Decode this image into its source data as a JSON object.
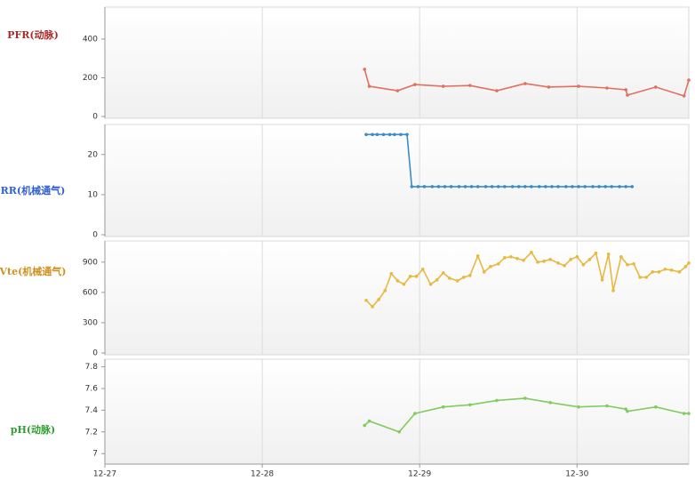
{
  "chart_data": [
    {
      "type": "line",
      "ylabel": "PFR(动脉)",
      "label_color": "#a82a2a",
      "ylim": [
        0,
        565
      ],
      "yticks": [
        0,
        200,
        400
      ],
      "xlim": [
        0,
        3.71
      ],
      "series": [
        {
          "color": "#e07060",
          "x": [
            1.65,
            1.68,
            1.86,
            1.97,
            2.15,
            2.32,
            2.49,
            2.67,
            2.82,
            3.01,
            3.19,
            3.31,
            3.32,
            3.5,
            3.68,
            3.71
          ],
          "values": [
            244,
            156,
            133,
            165,
            156,
            160,
            133,
            170,
            152,
            156,
            147,
            138,
            110,
            152,
            106,
            188
          ]
        }
      ]
    },
    {
      "type": "line",
      "ylabel": "RR(机械通气)",
      "label_color": "#3060d0",
      "ylim": [
        0,
        27.5
      ],
      "yticks": [
        0,
        10,
        20
      ],
      "xlim": [
        0,
        3.71
      ],
      "series": [
        {
          "color": "#3a8cc8",
          "x": [
            1.66,
            1.7,
            1.73,
            1.77,
            1.81,
            1.84,
            1.88,
            1.92,
            1.95,
            1.99,
            2.03,
            2.08,
            2.12,
            2.16,
            2.2,
            2.25,
            2.29,
            2.33,
            2.37,
            2.42,
            2.46,
            2.5,
            2.54,
            2.59,
            2.63,
            2.67,
            2.71,
            2.76,
            2.8,
            2.84,
            2.88,
            2.93,
            2.97,
            3.01,
            3.05,
            3.1,
            3.14,
            3.18,
            3.22,
            3.27,
            3.31,
            3.35
          ],
          "values": [
            25,
            25,
            25,
            25,
            25,
            25,
            25,
            25,
            12,
            12,
            12,
            12,
            12,
            12,
            12,
            12,
            12,
            12,
            12,
            12,
            12,
            12,
            12,
            12,
            12,
            12,
            12,
            12,
            12,
            12,
            12,
            12,
            12,
            12,
            12,
            12,
            12,
            12,
            12,
            12,
            12,
            12
          ]
        }
      ]
    },
    {
      "type": "line",
      "ylabel": "Vte(机械通气)",
      "label_color": "#d09020",
      "ylim": [
        0,
        1110
      ],
      "yticks": [
        0,
        300,
        600,
        900
      ],
      "xlim": [
        0,
        3.71
      ],
      "series": [
        {
          "color": "#e8b840",
          "x": [
            1.66,
            1.7,
            1.74,
            1.78,
            1.82,
            1.86,
            1.9,
            1.94,
            1.98,
            2.02,
            2.07,
            2.11,
            2.15,
            2.19,
            2.24,
            2.28,
            2.32,
            2.37,
            2.41,
            2.45,
            2.5,
            2.54,
            2.58,
            2.62,
            2.66,
            2.71,
            2.75,
            2.79,
            2.83,
            2.88,
            2.92,
            2.96,
            3.0,
            3.04,
            3.08,
            3.12,
            3.16,
            3.2,
            3.23,
            3.28,
            3.32,
            3.36,
            3.4,
            3.44,
            3.48,
            3.52,
            3.56,
            3.6,
            3.65,
            3.69,
            3.71
          ],
          "values": [
            521,
            459,
            530,
            618,
            786,
            715,
            680,
            759,
            759,
            830,
            680,
            724,
            794,
            741,
            715,
            750,
            768,
            962,
            803,
            856,
            883,
            944,
            953,
            936,
            918,
            997,
            900,
            909,
            927,
            891,
            865,
            927,
            953,
            874,
            927,
            989,
            724,
            980,
            618,
            953,
            874,
            883,
            750,
            750,
            803,
            803,
            830,
            821,
            803,
            856,
            891
          ]
        }
      ]
    },
    {
      "type": "line",
      "ylabel": "pH(动脉)",
      "label_color": "#30a030",
      "ylim": [
        6.92,
        7.87
      ],
      "yticks": [
        7,
        7.2,
        7.4,
        7.6,
        7.8
      ],
      "xlim": [
        0,
        3.71
      ],
      "xticks": [
        {
          "value": 0,
          "label": "12-27"
        },
        {
          "value": 1,
          "label": "12-28"
        },
        {
          "value": 2,
          "label": "12-29"
        },
        {
          "value": 3,
          "label": "12-30"
        }
      ],
      "series": [
        {
          "color": "#80cc60",
          "x": [
            1.65,
            1.68,
            1.87,
            1.97,
            2.15,
            2.32,
            2.49,
            2.67,
            2.83,
            3.01,
            3.19,
            3.31,
            3.32,
            3.5,
            3.68,
            3.71
          ],
          "values": [
            7.26,
            7.3,
            7.2,
            7.37,
            7.43,
            7.45,
            7.49,
            7.51,
            7.47,
            7.43,
            7.44,
            7.41,
            7.39,
            7.43,
            7.37,
            7.37
          ]
        }
      ]
    }
  ]
}
